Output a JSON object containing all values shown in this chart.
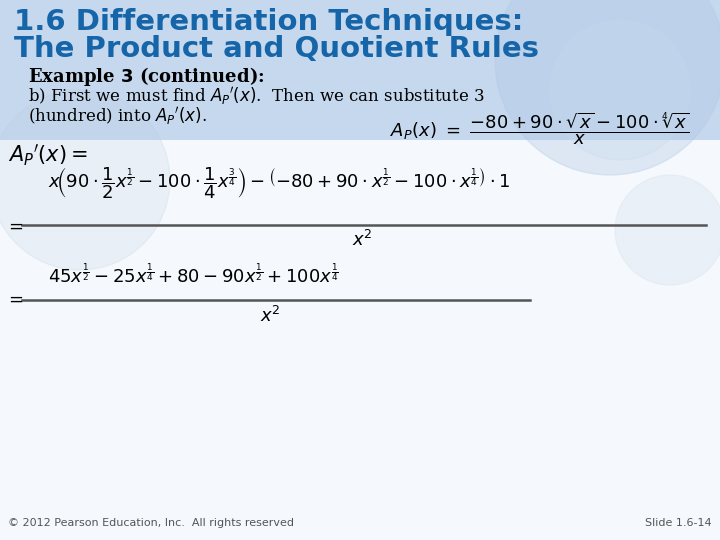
{
  "title_line1": "1.6 Differentiation Techniques:",
  "title_line2": "The Product and Quotient Rules",
  "title_color": "#1565a8",
  "bg_top_color": "#ccdcee",
  "bg_bottom_color": "#f5f8fc",
  "footer_left": "© 2012 Pearson Education, Inc.  All rights reserved",
  "footer_right": "Slide 1.6-14",
  "title_fontsize": 21,
  "example_fontsize": 13,
  "body_fontsize": 12,
  "math_fontsize": 13
}
